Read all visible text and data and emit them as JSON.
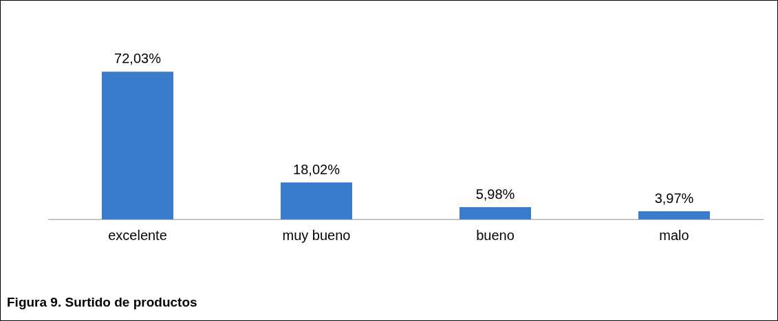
{
  "chart_data": {
    "type": "bar",
    "title": "Figura 9.  Surtido de productos",
    "categories": [
      "excelente",
      "muy bueno",
      "bueno",
      "malo"
    ],
    "values": [
      72.03,
      18.02,
      5.98,
      3.97
    ],
    "value_labels": [
      "72,03%",
      "18,02%",
      "5,98%",
      "3,97%"
    ],
    "color": "#3b7bcb",
    "grid": false,
    "legend": false
  }
}
